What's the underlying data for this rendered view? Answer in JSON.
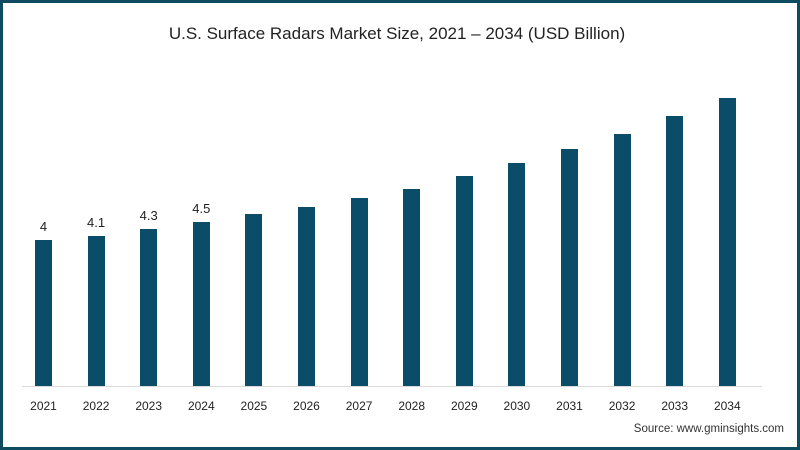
{
  "chart_data": {
    "type": "bar",
    "title": "U.S. Surface Radars Market Size, 2021 – 2034 (USD Billion)",
    "xlabel": "",
    "ylabel": "",
    "categories": [
      "2021",
      "2022",
      "2023",
      "2024",
      "2025",
      "2026",
      "2027",
      "2028",
      "2029",
      "2030",
      "2031",
      "2032",
      "2033",
      "2034"
    ],
    "values": [
      4.0,
      4.1,
      4.3,
      4.5,
      4.7,
      4.9,
      5.15,
      5.4,
      5.75,
      6.1,
      6.5,
      6.9,
      7.4,
      7.9
    ],
    "data_labels": [
      "4",
      "4.1",
      "4.3",
      "4.5",
      "",
      "",
      "",
      "",
      "",
      "",
      "",
      "",
      "",
      ""
    ],
    "ylim": [
      0,
      8.2
    ],
    "grid": false,
    "legend": null,
    "bar_color": "#0b4d68"
  },
  "source": "Source: www.gminsights.com",
  "frame_color": "#0e4a60"
}
